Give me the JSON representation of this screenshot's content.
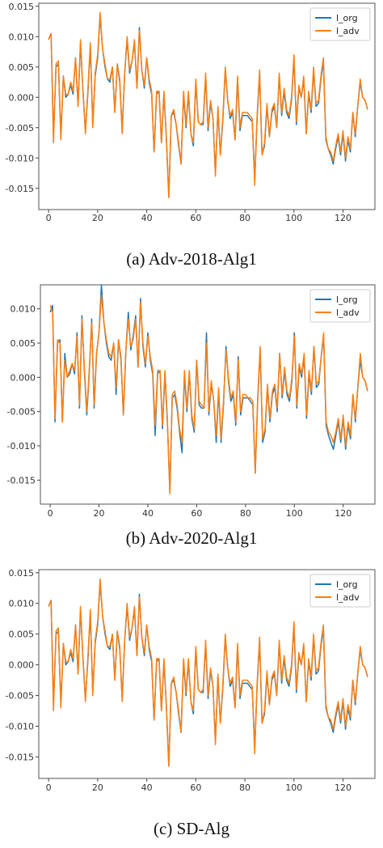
{
  "figures": [
    {
      "caption": "(a) Adv-2018-Alg1"
    },
    {
      "caption": "(b) Adv-2020-Alg1"
    },
    {
      "caption": "(c) SD-Alg"
    }
  ],
  "chart_data": [
    {
      "type": "line",
      "title": "",
      "xlabel": "",
      "ylabel": "",
      "xlim": [
        -4,
        133
      ],
      "ylim": [
        -0.0185,
        0.0155
      ],
      "xticks": [
        0,
        20,
        40,
        60,
        80,
        100,
        120
      ],
      "yticks": [
        -0.015,
        -0.01,
        -0.005,
        0.0,
        0.005,
        0.01,
        0.015
      ],
      "xtick_labels": [
        "0",
        "20",
        "40",
        "60",
        "80",
        "100",
        "120"
      ],
      "ytick_labels": [
        "-0.015",
        "-0.010",
        "-0.005",
        "0.000",
        "0.005",
        "0.010",
        "0.015"
      ],
      "legend_position": "top-right",
      "series": [
        {
          "name": "l_org",
          "color": "#1f77b4",
          "values": [
            0.0095,
            0.0105,
            -0.0065,
            0.005,
            0.0055,
            -0.0065,
            0.0035,
            0.0,
            0.0005,
            0.002,
            0.0005,
            0.0065,
            -0.0015,
            0.009,
            0.001,
            -0.0055,
            0.0005,
            0.0085,
            -0.0045,
            0.0035,
            0.0065,
            0.0135,
            0.008,
            0.005,
            0.003,
            0.0025,
            0.005,
            -0.0025,
            0.0055,
            0.0025,
            -0.0055,
            0.004,
            0.0095,
            0.004,
            0.006,
            0.009,
            0.0015,
            0.0115,
            0.0045,
            0.0015,
            0.0065,
            0.0025,
            0.0005,
            -0.009,
            0.0005,
            0.001,
            -0.0075,
            0.0005,
            -0.0065,
            -0.0165,
            -0.003,
            -0.0025,
            -0.0045,
            -0.008,
            -0.011,
            0.0005,
            -0.005,
            0.0005,
            -0.006,
            -0.008,
            0.0025,
            -0.004,
            -0.0045,
            -0.0045,
            0.0035,
            -0.0055,
            -0.001,
            -0.0035,
            -0.0125,
            -0.002,
            -0.0095,
            -0.004,
            0.0045,
            -0.0005,
            -0.0035,
            -0.0025,
            -0.007,
            0.003,
            -0.0055,
            -0.003,
            -0.003,
            -0.003,
            -0.0035,
            -0.004,
            -0.0135,
            -0.0035,
            0.004,
            -0.0095,
            -0.008,
            -0.0015,
            -0.0065,
            -0.0025,
            -0.0015,
            -0.005,
            0.0035,
            -0.003,
            0.001,
            -0.0025,
            -0.0035,
            -0.0005,
            0.0065,
            -0.0045,
            0.0015,
            0.0,
            0.003,
            -0.006,
            0.0005,
            -0.0025,
            0.0045,
            -0.0015,
            -0.001,
            0.003,
            0.006,
            -0.007,
            -0.0085,
            -0.0095,
            -0.011,
            -0.0085,
            -0.0065,
            -0.0095,
            -0.006,
            -0.0105,
            -0.007,
            -0.009,
            -0.0025,
            -0.0065,
            -0.0015,
            0.0025,
            0.0,
            -0.0005,
            -0.002
          ]
        },
        {
          "name": "l_adv",
          "color": "#ff7f0e",
          "values": [
            0.0095,
            0.0105,
            -0.0075,
            0.0055,
            0.006,
            -0.007,
            0.0035,
            0.0005,
            0.0005,
            0.0025,
            0.001,
            0.0065,
            -0.0015,
            0.0095,
            0.001,
            -0.006,
            0.001,
            0.009,
            -0.005,
            0.004,
            0.007,
            0.014,
            0.008,
            0.0055,
            0.003,
            0.003,
            0.005,
            -0.0025,
            0.0055,
            0.003,
            -0.006,
            0.004,
            0.01,
            0.0045,
            0.006,
            0.0095,
            0.0015,
            0.011,
            0.0045,
            0.002,
            0.0065,
            0.003,
            0.001,
            -0.009,
            0.001,
            0.001,
            -0.0075,
            0.001,
            -0.007,
            -0.0165,
            -0.003,
            -0.002,
            -0.0045,
            -0.0075,
            -0.011,
            0.001,
            -0.0045,
            0.001,
            -0.006,
            -0.0075,
            0.003,
            -0.004,
            -0.0045,
            -0.004,
            0.004,
            -0.005,
            -0.0005,
            -0.0035,
            -0.013,
            -0.0015,
            -0.0095,
            -0.0035,
            0.005,
            -0.0005,
            -0.003,
            -0.002,
            -0.007,
            0.0035,
            -0.005,
            -0.0025,
            -0.0025,
            -0.0025,
            -0.003,
            -0.0035,
            -0.0145,
            -0.003,
            0.0045,
            -0.0095,
            -0.0075,
            -0.001,
            -0.0065,
            -0.002,
            -0.001,
            -0.005,
            0.004,
            -0.0025,
            0.0015,
            -0.002,
            -0.003,
            0.0,
            0.007,
            -0.004,
            0.002,
            0.0,
            0.0035,
            -0.006,
            0.001,
            -0.002,
            0.005,
            -0.001,
            -0.0005,
            0.0035,
            0.0065,
            -0.0065,
            -0.0085,
            -0.009,
            -0.0105,
            -0.008,
            -0.006,
            -0.009,
            -0.0055,
            -0.01,
            -0.0065,
            -0.0085,
            -0.0025,
            -0.006,
            -0.0015,
            0.003,
            0.0,
            -0.0005,
            -0.002
          ]
        }
      ]
    },
    {
      "type": "line",
      "title": "",
      "xlabel": "",
      "ylabel": "",
      "xlim": [
        -4,
        133
      ],
      "ylim": [
        -0.0185,
        0.0135
      ],
      "xticks": [
        0,
        20,
        40,
        60,
        80,
        100,
        120
      ],
      "yticks": [
        -0.015,
        -0.01,
        -0.005,
        0.0,
        0.005,
        0.01
      ],
      "xtick_labels": [
        "0",
        "20",
        "40",
        "60",
        "80",
        "100",
        "120"
      ],
      "ytick_labels": [
        "-0.015",
        "-0.010",
        "-0.005",
        "0.000",
        "0.005",
        "0.010"
      ],
      "legend_position": "top-right",
      "series": [
        {
          "name": "l_org",
          "color": "#1f77b4",
          "values": [
            0.0095,
            0.0105,
            -0.0065,
            0.005,
            0.0055,
            -0.0065,
            0.0035,
            0.0,
            0.0005,
            0.002,
            0.0005,
            0.0065,
            -0.0045,
            0.009,
            0.001,
            -0.0055,
            0.0005,
            0.0085,
            -0.0045,
            0.0035,
            0.0065,
            0.0135,
            0.008,
            0.005,
            0.003,
            0.0025,
            0.005,
            -0.0025,
            0.0055,
            0.0025,
            -0.0055,
            0.004,
            0.0095,
            0.004,
            0.006,
            0.009,
            0.0015,
            0.0115,
            0.0045,
            0.0015,
            0.0065,
            0.0025,
            0.0005,
            -0.0085,
            0.0005,
            0.001,
            -0.0075,
            0.0005,
            -0.0065,
            -0.0165,
            -0.003,
            -0.0025,
            -0.0045,
            -0.008,
            -0.011,
            0.0005,
            -0.005,
            0.0005,
            -0.006,
            -0.008,
            0.0025,
            -0.004,
            -0.0045,
            -0.0045,
            0.0065,
            -0.0055,
            -0.001,
            -0.0035,
            -0.0095,
            -0.002,
            -0.0095,
            -0.004,
            0.0045,
            -0.0005,
            -0.0035,
            -0.0025,
            -0.007,
            0.003,
            -0.0055,
            -0.003,
            -0.003,
            -0.003,
            -0.0035,
            -0.004,
            -0.014,
            -0.0035,
            0.004,
            -0.0095,
            -0.008,
            -0.0015,
            -0.0065,
            -0.0025,
            -0.0015,
            -0.005,
            0.0035,
            -0.003,
            0.001,
            -0.0025,
            -0.0035,
            -0.0005,
            0.0065,
            -0.0045,
            0.0015,
            0.0,
            0.003,
            -0.006,
            0.0005,
            -0.0025,
            0.0045,
            -0.0015,
            -0.001,
            0.003,
            0.006,
            -0.007,
            -0.0085,
            -0.0095,
            -0.0105,
            -0.0085,
            -0.0065,
            -0.0095,
            -0.006,
            -0.0105,
            -0.007,
            -0.009,
            -0.0025,
            -0.0065,
            -0.0015,
            0.0025,
            0.0,
            -0.0005,
            -0.002
          ]
        },
        {
          "name": "l_adv",
          "color": "#ff7f0e",
          "values": [
            0.0105,
            0.0095,
            -0.006,
            0.0055,
            0.005,
            -0.0065,
            0.0025,
            0.0,
            0.001,
            0.002,
            0.001,
            0.006,
            -0.004,
            0.0085,
            0.0015,
            -0.005,
            0.001,
            0.008,
            -0.004,
            0.0035,
            0.0065,
            0.012,
            0.008,
            0.0055,
            0.0035,
            0.003,
            0.005,
            -0.0015,
            0.0055,
            0.003,
            -0.0055,
            0.004,
            0.0085,
            0.0045,
            0.0055,
            0.0085,
            0.0015,
            0.011,
            0.005,
            0.002,
            0.006,
            0.003,
            0.001,
            -0.007,
            0.001,
            0.001,
            -0.007,
            0.001,
            -0.006,
            -0.017,
            -0.0025,
            -0.002,
            -0.004,
            -0.0075,
            -0.0095,
            0.001,
            -0.0045,
            0.001,
            -0.0055,
            -0.0075,
            0.0025,
            -0.0035,
            -0.004,
            -0.0045,
            0.005,
            -0.005,
            -0.0005,
            -0.0035,
            -0.0085,
            -0.0015,
            -0.009,
            -0.0035,
            0.004,
            0.0,
            -0.003,
            -0.002,
            -0.0065,
            0.0025,
            -0.005,
            -0.0025,
            -0.0025,
            -0.003,
            -0.003,
            -0.0035,
            -0.014,
            -0.003,
            0.0045,
            -0.009,
            -0.0075,
            -0.001,
            -0.006,
            -0.002,
            -0.001,
            -0.0045,
            0.0035,
            -0.0025,
            0.0015,
            -0.002,
            -0.003,
            0.0,
            0.006,
            -0.004,
            0.002,
            0.0005,
            0.0035,
            -0.0055,
            0.001,
            -0.002,
            0.0045,
            -0.001,
            -0.0005,
            0.003,
            0.0065,
            -0.0065,
            -0.008,
            -0.0085,
            -0.0095,
            -0.008,
            -0.006,
            -0.009,
            -0.0055,
            -0.01,
            -0.0065,
            -0.0085,
            -0.0025,
            -0.006,
            -0.0015,
            0.0035,
            0.0,
            -0.0005,
            -0.002
          ]
        }
      ]
    },
    {
      "type": "line",
      "title": "",
      "xlabel": "",
      "ylabel": "",
      "xlim": [
        -4,
        133
      ],
      "ylim": [
        -0.0185,
        0.0155
      ],
      "xticks": [
        0,
        20,
        40,
        60,
        80,
        100,
        120
      ],
      "yticks": [
        -0.015,
        -0.01,
        -0.005,
        0.0,
        0.005,
        0.01,
        0.015
      ],
      "xtick_labels": [
        "0",
        "20",
        "40",
        "60",
        "80",
        "100",
        "120"
      ],
      "ytick_labels": [
        "-0.015",
        "-0.010",
        "-0.005",
        "0.000",
        "0.005",
        "0.010",
        "0.015"
      ],
      "legend_position": "top-right",
      "series": [
        {
          "name": "l_org",
          "color": "#1f77b4",
          "values": [
            0.0095,
            0.0105,
            -0.0065,
            0.005,
            0.0055,
            -0.0065,
            0.0035,
            0.0,
            0.0005,
            0.002,
            0.0005,
            0.0065,
            -0.0015,
            0.009,
            0.001,
            -0.0055,
            0.0005,
            0.0085,
            -0.0045,
            0.0035,
            0.0065,
            0.0135,
            0.008,
            0.005,
            0.003,
            0.0025,
            0.005,
            -0.0025,
            0.0055,
            0.0025,
            -0.0055,
            0.004,
            0.0095,
            0.004,
            0.006,
            0.009,
            0.0015,
            0.0115,
            0.0045,
            0.0015,
            0.0065,
            0.0025,
            0.0005,
            -0.009,
            0.0005,
            0.001,
            -0.0075,
            0.0005,
            -0.0065,
            -0.0165,
            -0.003,
            -0.0025,
            -0.0045,
            -0.008,
            -0.011,
            0.0005,
            -0.005,
            0.0005,
            -0.006,
            -0.008,
            0.0025,
            -0.004,
            -0.0045,
            -0.0045,
            0.0035,
            -0.0055,
            -0.001,
            -0.0035,
            -0.0125,
            -0.002,
            -0.0095,
            -0.004,
            0.0045,
            -0.0005,
            -0.0035,
            -0.0025,
            -0.007,
            0.003,
            -0.0055,
            -0.003,
            -0.003,
            -0.003,
            -0.0035,
            -0.004,
            -0.0135,
            -0.0035,
            0.004,
            -0.0095,
            -0.008,
            -0.0015,
            -0.0065,
            -0.0025,
            -0.0015,
            -0.005,
            0.0035,
            -0.003,
            0.001,
            -0.0025,
            -0.0035,
            -0.0005,
            0.0065,
            -0.0045,
            0.0015,
            0.0,
            0.003,
            -0.006,
            0.0005,
            -0.0025,
            0.0045,
            -0.0015,
            -0.001,
            0.003,
            0.006,
            -0.007,
            -0.0085,
            -0.0095,
            -0.011,
            -0.0085,
            -0.0065,
            -0.0095,
            -0.006,
            -0.0105,
            -0.007,
            -0.009,
            -0.0025,
            -0.0065,
            -0.0015,
            0.0025,
            0.0,
            -0.0005,
            -0.002
          ]
        },
        {
          "name": "l_adv",
          "color": "#ff7f0e",
          "values": [
            0.0095,
            0.0105,
            -0.0075,
            0.0055,
            0.006,
            -0.007,
            0.0035,
            0.0005,
            0.0005,
            0.0025,
            0.001,
            0.0065,
            -0.0015,
            0.0095,
            0.001,
            -0.006,
            0.001,
            0.009,
            -0.005,
            0.004,
            0.007,
            0.014,
            0.008,
            0.0055,
            0.003,
            0.003,
            0.005,
            -0.0025,
            0.0055,
            0.003,
            -0.006,
            0.004,
            0.01,
            0.0045,
            0.006,
            0.0095,
            0.0015,
            0.011,
            0.0045,
            0.002,
            0.0065,
            0.003,
            0.001,
            -0.009,
            0.001,
            0.001,
            -0.0075,
            0.001,
            -0.007,
            -0.0165,
            -0.003,
            -0.002,
            -0.0045,
            -0.0075,
            -0.011,
            0.001,
            -0.0045,
            0.001,
            -0.006,
            -0.0075,
            0.003,
            -0.004,
            -0.0045,
            -0.004,
            0.004,
            -0.005,
            -0.0005,
            -0.0035,
            -0.013,
            -0.0015,
            -0.0095,
            -0.0035,
            0.005,
            -0.0005,
            -0.003,
            -0.002,
            -0.007,
            0.0035,
            -0.005,
            -0.0025,
            -0.0025,
            -0.0025,
            -0.003,
            -0.0035,
            -0.0145,
            -0.003,
            0.0045,
            -0.0095,
            -0.0075,
            -0.001,
            -0.0065,
            -0.002,
            -0.001,
            -0.005,
            0.004,
            -0.0025,
            0.0015,
            -0.002,
            -0.003,
            0.0,
            0.007,
            -0.004,
            0.002,
            0.0,
            0.0035,
            -0.006,
            0.001,
            -0.002,
            0.005,
            -0.001,
            -0.0005,
            0.0035,
            0.0065,
            -0.0065,
            -0.0085,
            -0.009,
            -0.0105,
            -0.008,
            -0.006,
            -0.009,
            -0.0055,
            -0.01,
            -0.0065,
            -0.0085,
            -0.0025,
            -0.006,
            -0.0015,
            0.003,
            0.0,
            -0.0005,
            -0.002
          ]
        }
      ]
    }
  ]
}
